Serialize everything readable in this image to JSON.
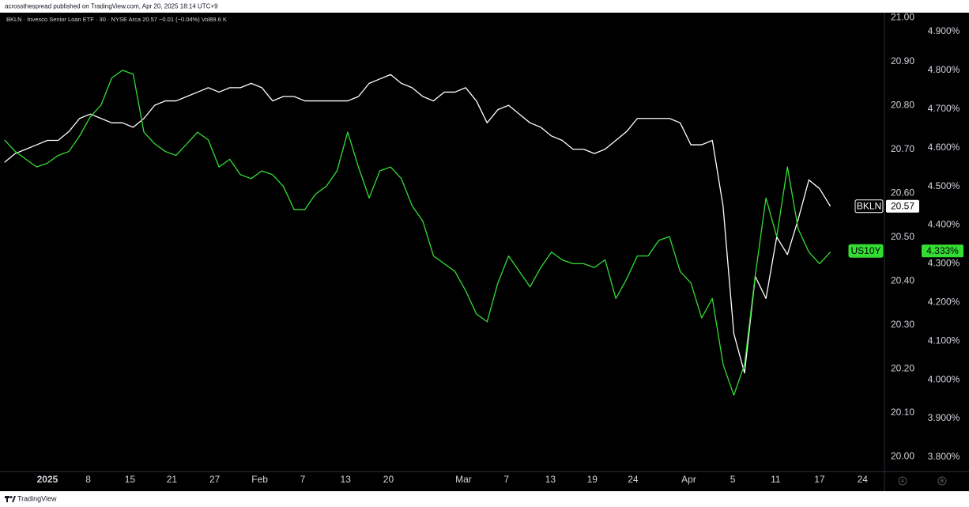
{
  "header": "acrossthespread published on TradingView.com, Apr 20, 2025 18:14 UTC+9",
  "footer": "TradingView",
  "axis_buttons": [
    "A",
    "B"
  ],
  "chart_data": {
    "type": "line",
    "title": "BKLN · Invesco Senior Loan ETF · 30 · NYSE Arca  20.57  −0.01 (−0.04%)  Vol89.6 K",
    "grid": false,
    "x": [
      -4,
      -3,
      -2,
      -1,
      0,
      1,
      2,
      3,
      4,
      5,
      6,
      7,
      8,
      9,
      10,
      11,
      12,
      13,
      14,
      15,
      16,
      17,
      18,
      19,
      20,
      21,
      22,
      23,
      24,
      25,
      26,
      27,
      28,
      29,
      30,
      31,
      32,
      33,
      34,
      35,
      36,
      37,
      38,
      39,
      40,
      41,
      42,
      43,
      44,
      45,
      46,
      47,
      48,
      49,
      50,
      51,
      52,
      53,
      54,
      55,
      56,
      57,
      58,
      59,
      60,
      61,
      62,
      63,
      64,
      65,
      66,
      67,
      68,
      69,
      70,
      71,
      72,
      73
    ],
    "xlim": [
      -4.42,
      77.97
    ],
    "xticks": [
      {
        "value": 0,
        "label": "2025"
      },
      {
        "value": 3.8,
        "label": "8"
      },
      {
        "value": 7.7,
        "label": "15"
      },
      {
        "value": 11.6,
        "label": "21"
      },
      {
        "value": 15.6,
        "label": "27"
      },
      {
        "value": 19.8,
        "label": "Feb"
      },
      {
        "value": 23.8,
        "label": "7"
      },
      {
        "value": 27.8,
        "label": "13"
      },
      {
        "value": 31.8,
        "label": "20"
      },
      {
        "value": 38.8,
        "label": "Mar"
      },
      {
        "value": 42.8,
        "label": "7"
      },
      {
        "value": 46.9,
        "label": "13"
      },
      {
        "value": 50.8,
        "label": "19"
      },
      {
        "value": 54.6,
        "label": "24"
      },
      {
        "value": 59.8,
        "label": "Apr"
      },
      {
        "value": 63.9,
        "label": "5"
      },
      {
        "value": 67.9,
        "label": "11"
      },
      {
        "value": 72.0,
        "label": "17"
      },
      {
        "value": 76.0,
        "label": "24"
      }
    ],
    "ylim": [
      19.966,
      21.011
    ],
    "yticks": [
      {
        "value": 20.0,
        "label": "20.00"
      },
      {
        "value": 20.1,
        "label": "20.10"
      },
      {
        "value": 20.2,
        "label": "20.20"
      },
      {
        "value": 20.3,
        "label": "20.30"
      },
      {
        "value": 20.4,
        "label": "20.40"
      },
      {
        "value": 20.5,
        "label": "20.50"
      },
      {
        "value": 20.6,
        "label": "20.60"
      },
      {
        "value": 20.7,
        "label": "20.70"
      },
      {
        "value": 20.8,
        "label": "20.80"
      },
      {
        "value": 20.9,
        "label": "20.90"
      },
      {
        "value": 21.0,
        "label": "21.00"
      }
    ],
    "y2lim": [
      3.763,
      4.949
    ],
    "y2ticks": [
      {
        "value": 3.8,
        "label": "3.800%"
      },
      {
        "value": 3.9,
        "label": "3.900%"
      },
      {
        "value": 4.0,
        "label": "4.000%"
      },
      {
        "value": 4.1,
        "label": "4.100%"
      },
      {
        "value": 4.2,
        "label": "4.200%"
      },
      {
        "value": 4.3,
        "label": "4.300%"
      },
      {
        "value": 4.4,
        "label": "4.400%"
      },
      {
        "value": 4.5,
        "label": "4.500%"
      },
      {
        "value": 4.6,
        "label": "4.600%"
      },
      {
        "value": 4.7,
        "label": "4.700%"
      },
      {
        "value": 4.8,
        "label": "4.800%"
      },
      {
        "value": 4.9,
        "label": "4.900%"
      }
    ],
    "series": [
      {
        "name": "BKLN",
        "color": "#ffffff",
        "axis": "y",
        "last": 20.57,
        "values": [
          20.67,
          20.69,
          20.7,
          20.71,
          20.72,
          20.72,
          20.74,
          20.77,
          20.78,
          20.77,
          20.76,
          20.76,
          20.75,
          20.77,
          20.8,
          20.81,
          20.81,
          20.82,
          20.83,
          20.84,
          20.83,
          20.84,
          20.84,
          20.85,
          20.84,
          20.81,
          20.82,
          20.82,
          20.81,
          20.81,
          20.81,
          20.81,
          20.81,
          20.82,
          20.85,
          20.86,
          20.87,
          20.85,
          20.84,
          20.82,
          20.81,
          20.83,
          20.83,
          20.84,
          20.81,
          20.76,
          20.79,
          20.8,
          20.78,
          20.76,
          20.75,
          20.73,
          20.72,
          20.7,
          20.7,
          20.69,
          20.7,
          20.72,
          20.74,
          20.77,
          20.77,
          20.77,
          20.77,
          20.76,
          20.71,
          20.71,
          20.72,
          20.57,
          20.28,
          20.19,
          20.41,
          20.36,
          20.5,
          20.46,
          20.54,
          20.63,
          20.61,
          20.57
        ]
      },
      {
        "name": "US10Y",
        "color": "#33dd33",
        "axis": "y2",
        "last": {
          "value": 4.333,
          "label": "4.333%"
        },
        "values": [
          4.62,
          4.59,
          4.57,
          4.55,
          4.56,
          4.58,
          4.59,
          4.63,
          4.68,
          4.71,
          4.78,
          4.8,
          4.79,
          4.64,
          4.61,
          4.59,
          4.58,
          4.61,
          4.64,
          4.62,
          4.55,
          4.57,
          4.53,
          4.52,
          4.54,
          4.53,
          4.5,
          4.44,
          4.44,
          4.48,
          4.5,
          4.54,
          4.64,
          4.55,
          4.47,
          4.54,
          4.55,
          4.52,
          4.45,
          4.41,
          4.32,
          4.3,
          4.28,
          4.23,
          4.17,
          4.15,
          4.25,
          4.32,
          4.28,
          4.24,
          4.29,
          4.33,
          4.31,
          4.3,
          4.3,
          4.29,
          4.31,
          4.21,
          4.26,
          4.32,
          4.32,
          4.36,
          4.37,
          4.28,
          4.25,
          4.16,
          4.21,
          4.04,
          3.96,
          4.04,
          4.27,
          4.47,
          4.37,
          4.55,
          4.39,
          4.33,
          4.3,
          4.33
        ]
      }
    ]
  }
}
